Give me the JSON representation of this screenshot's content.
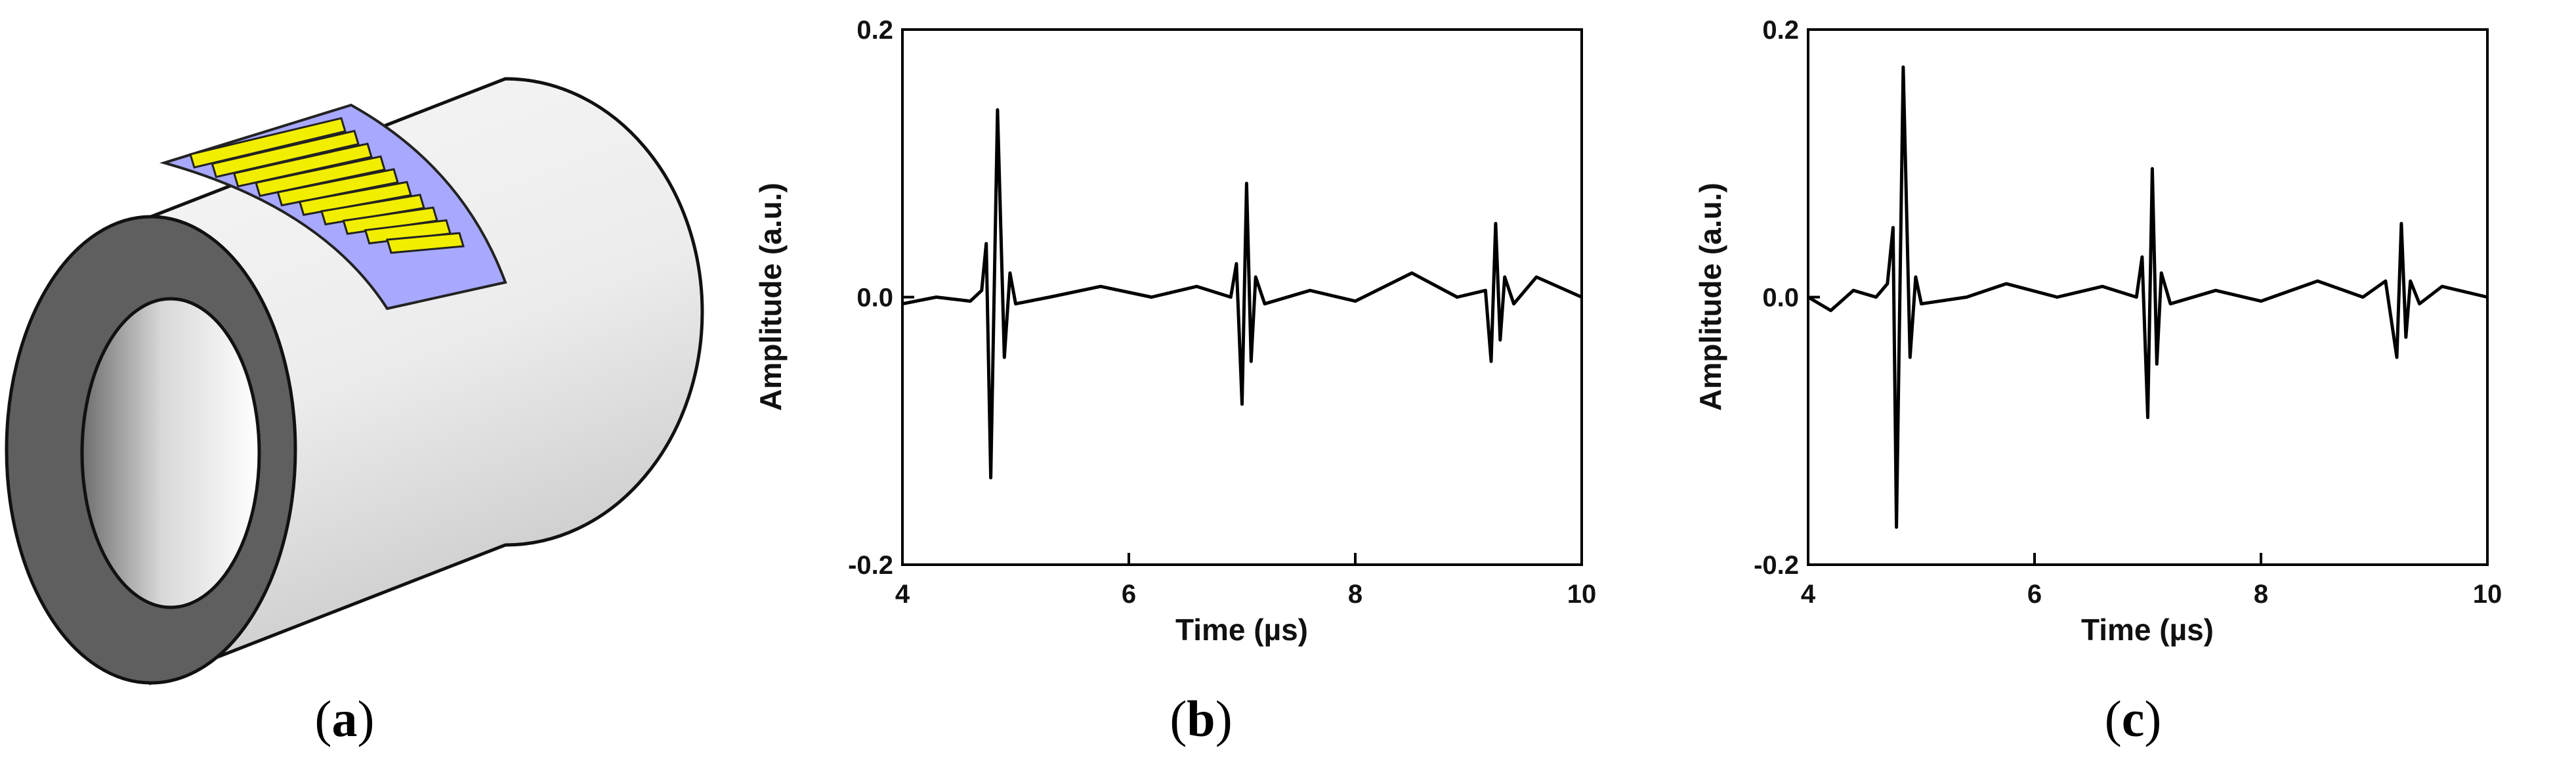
{
  "panels": {
    "a": {
      "open": "(",
      "letter": "a",
      "close": ")"
    },
    "b": {
      "open": "(",
      "letter": "b",
      "close": ")"
    },
    "c": {
      "open": "(",
      "letter": "c",
      "close": ")"
    }
  },
  "colors": {
    "pipe_light": "#f2f2f2",
    "pipe_dark": "#5f5f5f",
    "sheet": "#a8a8ff",
    "elements": "#f2ee00",
    "trace": "#000000"
  },
  "chart_data": [
    {
      "type": "line",
      "title": "",
      "xlabel": "Time (µs)",
      "ylabel": "Amplitude (a.u.)",
      "xlim": [
        4,
        10
      ],
      "ylim": [
        -0.2,
        0.2
      ],
      "xticks": [
        4,
        6,
        8,
        10
      ],
      "xtick_labels": [
        "4",
        "6",
        "8",
        "10"
      ],
      "yticks": [
        -0.2,
        0.0,
        0.2
      ],
      "ytick_labels": [
        "-0.2",
        "0.0",
        "0.2"
      ],
      "grid": false,
      "legend": "none",
      "series": [
        {
          "x": [
            4.0,
            4.3,
            4.6,
            4.7,
            4.74,
            4.78,
            4.84,
            4.9,
            4.95,
            5.0,
            5.3,
            5.75,
            6.2,
            6.6,
            6.9,
            6.95,
            7.0,
            7.04,
            7.08,
            7.12,
            7.2,
            7.6,
            8.0,
            8.5,
            8.9,
            9.15,
            9.2,
            9.24,
            9.28,
            9.32,
            9.4,
            9.6,
            10.0
          ],
          "y": [
            -0.005,
            0.0,
            -0.003,
            0.005,
            0.04,
            -0.135,
            0.14,
            -0.045,
            0.018,
            -0.005,
            0.0,
            0.008,
            0.0,
            0.008,
            0.0,
            0.025,
            -0.08,
            0.085,
            -0.048,
            0.015,
            -0.005,
            0.005,
            -0.003,
            0.018,
            0.0,
            0.005,
            -0.048,
            0.055,
            -0.032,
            0.015,
            -0.005,
            0.015,
            0.0
          ]
        }
      ]
    },
    {
      "type": "line",
      "title": "",
      "xlabel": "Time (µs)",
      "ylabel": "Amplitude (a.u.)",
      "xlim": [
        4,
        10
      ],
      "ylim": [
        -0.2,
        0.2
      ],
      "xticks": [
        4,
        6,
        8,
        10
      ],
      "xtick_labels": [
        "4",
        "6",
        "8",
        "10"
      ],
      "yticks": [
        -0.2,
        0.0,
        0.2
      ],
      "ytick_labels": [
        "-0.2",
        "0.0",
        "0.2"
      ],
      "grid": false,
      "legend": "none",
      "series": [
        {
          "x": [
            4.0,
            4.2,
            4.4,
            4.6,
            4.7,
            4.75,
            4.78,
            4.84,
            4.9,
            4.95,
            5.0,
            5.4,
            5.75,
            6.2,
            6.6,
            6.9,
            6.95,
            7.0,
            7.04,
            7.08,
            7.12,
            7.2,
            7.6,
            8.0,
            8.5,
            8.9,
            9.1,
            9.2,
            9.24,
            9.28,
            9.32,
            9.4,
            9.6,
            10.0
          ],
          "y": [
            0.0,
            -0.01,
            0.005,
            0.0,
            0.01,
            0.052,
            -0.172,
            0.172,
            -0.045,
            0.015,
            -0.005,
            0.0,
            0.01,
            0.0,
            0.008,
            0.0,
            0.03,
            -0.09,
            0.096,
            -0.05,
            0.018,
            -0.005,
            0.005,
            -0.003,
            0.012,
            0.0,
            0.012,
            -0.045,
            0.055,
            -0.03,
            0.012,
            -0.005,
            0.008,
            0.0
          ]
        }
      ]
    }
  ]
}
